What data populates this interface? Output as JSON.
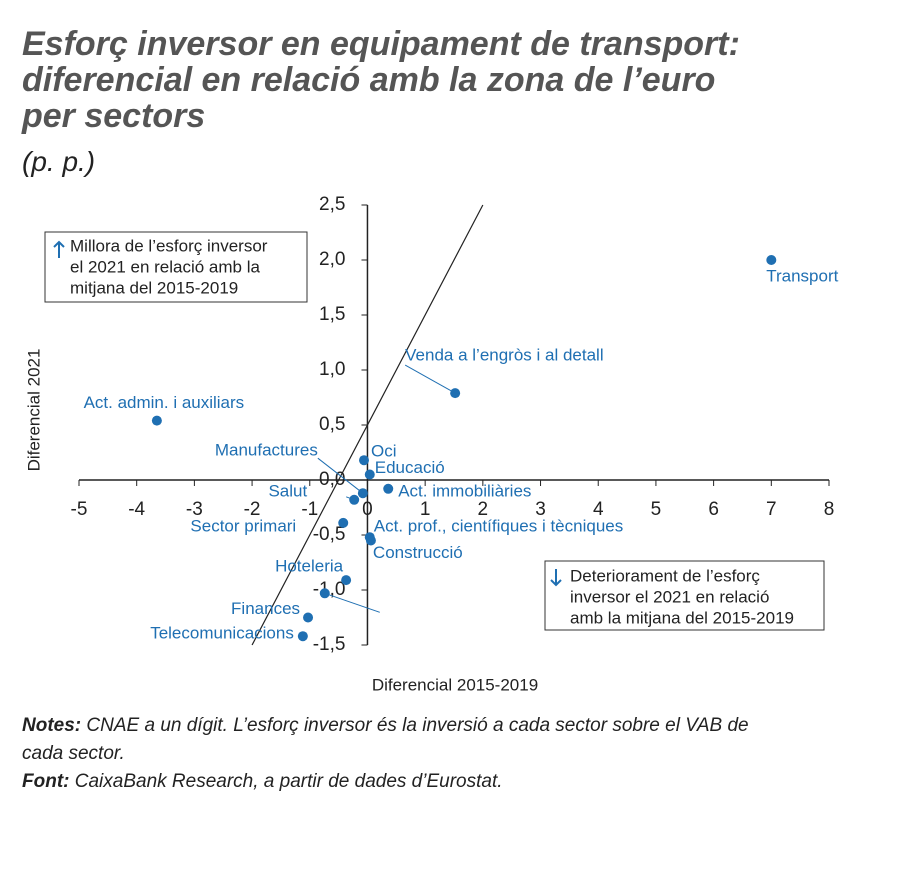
{
  "chart_data": {
    "type": "scatter",
    "title": [
      "Esforç inversor en equipament de transport:",
      "diferencial en relació amb la zona de l’euro",
      "per sectors"
    ],
    "subtitle": "(p. p.)",
    "x_label": "Diferencial 2015-2019",
    "y_label": "Diferencial 2021",
    "color": "#1f6fb2",
    "labels": [
      "Transport",
      "Venda a l’engròs i al detall",
      "Act. admin. i auxiliars",
      "Oci",
      "Educació",
      "Act. immobiliàries",
      "Manufactures",
      "Salut",
      "Sector primari",
      "Act. prof., científiques i tècniques",
      "Construcció",
      "Hoteleria",
      null,
      "Finances",
      "Telecomunicacions"
    ],
    "x": [
      7.0,
      1.52,
      -3.65,
      -0.06,
      0.04,
      0.36,
      -0.08,
      -0.23,
      -0.42,
      0.04,
      0.06,
      -0.37,
      -0.74,
      -1.03,
      -1.12
    ],
    "y": [
      2.0,
      0.79,
      0.54,
      0.18,
      0.05,
      -0.08,
      -0.12,
      -0.18,
      -0.39,
      -0.52,
      -0.55,
      -0.91,
      -1.03,
      -1.25,
      -1.42
    ],
    "reference_line": {
      "x": [
        -2,
        2
      ],
      "y": [
        -1.5,
        2.5
      ]
    },
    "xlim": [
      -5,
      8
    ],
    "ylim": [
      -1.5,
      2.5
    ],
    "xticks": [
      -5,
      -4,
      -3,
      -2,
      -1,
      0,
      1,
      2,
      3,
      4,
      5,
      6,
      7,
      8
    ],
    "yticks": [
      {
        "value": 2.5,
        "label": "2,5"
      },
      {
        "value": 2.0,
        "label": "2,0"
      },
      {
        "value": 1.5,
        "label": "1,5"
      },
      {
        "value": 1.0,
        "label": "1,0"
      },
      {
        "value": 0.5,
        "label": "0,5"
      },
      {
        "value": 0,
        "label": "0,0"
      },
      {
        "value": -0.5,
        "label": "-0,5"
      },
      {
        "value": -1.0,
        "label": "-1,0"
      },
      {
        "value": -1.5,
        "label": "-1,5"
      }
    ],
    "annotations": [
      [
        "Millora de l’esforç inversor",
        "el 2021 en relació amb la",
        "mitjana del 2015-2019"
      ],
      [
        "Deteriorament de l’esforç",
        "inversor el 2021 en relació",
        "amb la mitjana del 2015-2019"
      ]
    ]
  },
  "notes": {
    "label": "Notes:",
    "text": "CNAE a un dígit. L’esforç inversor és la inversió a cada sector sobre el VAB de cada sector."
  },
  "source": {
    "label": "Font:",
    "text": "CaixaBank Research, a partir de dades d’Eurostat."
  }
}
